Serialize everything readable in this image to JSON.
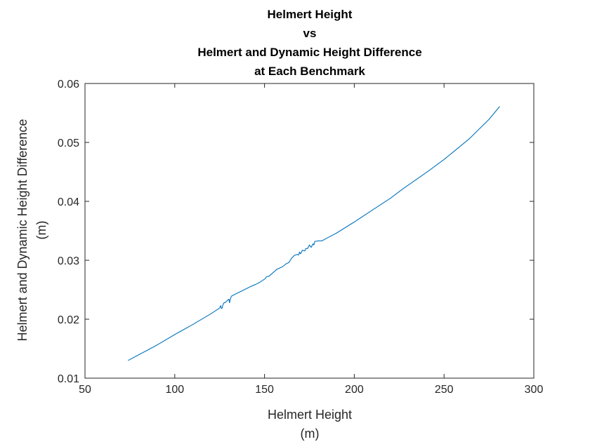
{
  "chart_data": {
    "type": "line",
    "title": [
      "Helmert Height",
      "vs",
      "Helmert and Dynamic Height Difference",
      "at Each Benchmark"
    ],
    "xlabel": [
      "Helmert Height",
      "(m)"
    ],
    "ylabel": [
      "Helmert and Dynamic Height Difference",
      "(m)"
    ],
    "xlim": [
      50,
      300
    ],
    "ylim": [
      0.01,
      0.06
    ],
    "xticks": [
      50,
      100,
      150,
      200,
      250,
      300
    ],
    "yticks": [
      0.01,
      0.02,
      0.03,
      0.04,
      0.05,
      0.06
    ],
    "xtick_labels": [
      "50",
      "100",
      "150",
      "200",
      "250",
      "300"
    ],
    "ytick_labels": [
      "0.01",
      "0.02",
      "0.03",
      "0.04",
      "0.05",
      "0.06"
    ],
    "grid": false,
    "color": "#0072BD",
    "series": [
      {
        "x": [
          74,
          90,
          100,
          110,
          120,
          125,
          125.6,
          126,
          126.4,
          127,
          127.5,
          128,
          129,
          130.2,
          130.5,
          130.8,
          131.5,
          134,
          138,
          142,
          145,
          147,
          149,
          150.5,
          151,
          152.5,
          154,
          155.5,
          157,
          160,
          162,
          163.5,
          165,
          166.5,
          168,
          169,
          169.5,
          170,
          170.5,
          171,
          172.5,
          173,
          174,
          175,
          176,
          177,
          177.5,
          178,
          180,
          182,
          185,
          190,
          200,
          210,
          220,
          227,
          235,
          242,
          250,
          258,
          264,
          268,
          275,
          281
        ],
        "y": [
          0.013,
          0.0156,
          0.0174,
          0.0191,
          0.0209,
          0.0219,
          0.0223,
          0.0218,
          0.0219,
          0.0226,
          0.0228,
          0.0228,
          0.0231,
          0.0234,
          0.0228,
          0.0232,
          0.0239,
          0.0243,
          0.0249,
          0.0255,
          0.0259,
          0.0262,
          0.0266,
          0.0269,
          0.0272,
          0.0273,
          0.0277,
          0.0281,
          0.0285,
          0.0289,
          0.0294,
          0.0296,
          0.0303,
          0.0308,
          0.031,
          0.0309,
          0.0314,
          0.0311,
          0.0313,
          0.0317,
          0.0316,
          0.032,
          0.032,
          0.0326,
          0.0322,
          0.0328,
          0.0326,
          0.0332,
          0.0333,
          0.0333,
          0.0338,
          0.0346,
          0.0365,
          0.0385,
          0.0405,
          0.0421,
          0.0438,
          0.0453,
          0.0471,
          0.0491,
          0.0506,
          0.0518,
          0.0539,
          0.0561
        ]
      }
    ]
  }
}
